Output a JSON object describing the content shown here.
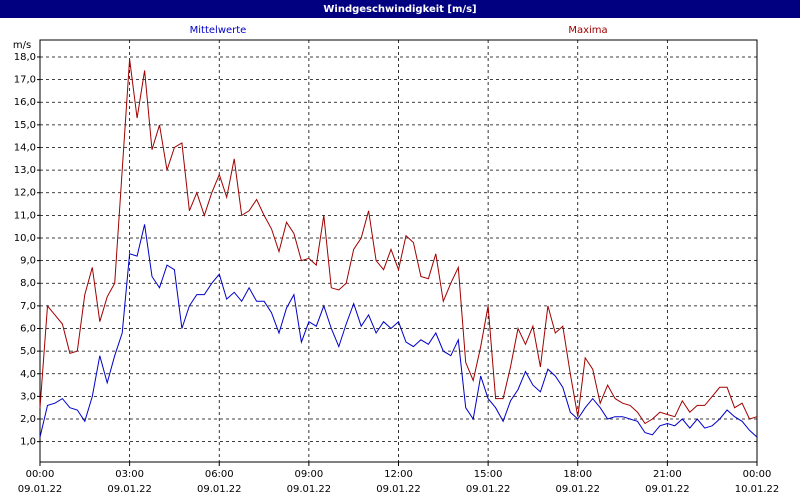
{
  "chart_data": {
    "type": "line",
    "title": "Windgeschwindigkeit [m/s]",
    "y_unit": "m/s",
    "xlim": [
      0,
      24
    ],
    "ylim": [
      0.1,
      18.75
    ],
    "grid": true,
    "xticks": [
      {
        "value": 0,
        "label": [
          "00:00",
          "09.01.22"
        ]
      },
      {
        "value": 3,
        "label": [
          "03:00",
          "09.01.22"
        ]
      },
      {
        "value": 6,
        "label": [
          "06:00",
          "09.01.22"
        ]
      },
      {
        "value": 9,
        "label": [
          "09:00",
          "09.01.22"
        ]
      },
      {
        "value": 12,
        "label": [
          "12:00",
          "09.01.22"
        ]
      },
      {
        "value": 15,
        "label": [
          "15:00",
          "09.01.22"
        ]
      },
      {
        "value": 18,
        "label": [
          "18:00",
          "09.01.22"
        ]
      },
      {
        "value": 21,
        "label": [
          "21:00",
          "09.01.22"
        ]
      },
      {
        "value": 24,
        "label": [
          "00:00",
          "10.01.22"
        ]
      }
    ],
    "yticks": [
      {
        "value": 1,
        "label": "1,0"
      },
      {
        "value": 2,
        "label": "2,0"
      },
      {
        "value": 3,
        "label": "3,0"
      },
      {
        "value": 4,
        "label": "4,0"
      },
      {
        "value": 5,
        "label": "5,0"
      },
      {
        "value": 6,
        "label": "6,0"
      },
      {
        "value": 7,
        "label": "7,0"
      },
      {
        "value": 8,
        "label": "8,0"
      },
      {
        "value": 9,
        "label": "9,0"
      },
      {
        "value": 10,
        "label": "10,0"
      },
      {
        "value": 11,
        "label": "11,0"
      },
      {
        "value": 12,
        "label": "12,0"
      },
      {
        "value": 13,
        "label": "13,0"
      },
      {
        "value": 14,
        "label": "14,0"
      },
      {
        "value": 15,
        "label": "15,0"
      },
      {
        "value": 16,
        "label": "16,0"
      },
      {
        "value": 17,
        "label": "17,0"
      },
      {
        "value": 18,
        "label": "18,0"
      }
    ],
    "x": [
      0,
      0.25,
      0.5,
      0.75,
      1,
      1.25,
      1.5,
      1.75,
      2,
      2.25,
      2.5,
      2.75,
      3,
      3.25,
      3.5,
      3.75,
      4,
      4.25,
      4.5,
      4.75,
      5,
      5.25,
      5.5,
      5.75,
      6,
      6.25,
      6.5,
      6.75,
      7,
      7.25,
      7.5,
      7.75,
      8,
      8.25,
      8.5,
      8.75,
      9,
      9.25,
      9.5,
      9.75,
      10,
      10.25,
      10.5,
      10.75,
      11,
      11.25,
      11.5,
      11.75,
      12,
      12.25,
      12.5,
      12.75,
      13,
      13.25,
      13.5,
      13.75,
      14,
      14.25,
      14.5,
      14.75,
      15,
      15.25,
      15.5,
      15.75,
      16,
      16.25,
      16.5,
      16.75,
      17,
      17.25,
      17.5,
      17.75,
      18,
      18.25,
      18.5,
      18.75,
      19,
      19.25,
      19.5,
      19.75,
      20,
      20.25,
      20.5,
      20.75,
      21,
      21.25,
      21.5,
      21.75,
      22,
      22.25,
      22.5,
      22.75,
      23,
      23.25,
      23.5,
      23.75,
      24
    ],
    "series": [
      {
        "name": "Mittelwerte",
        "color": "#0000c8",
        "values": [
          1.2,
          2.6,
          2.7,
          2.9,
          2.5,
          2.4,
          1.9,
          3.0,
          4.8,
          3.6,
          4.8,
          5.8,
          9.3,
          9.2,
          10.6,
          8.3,
          7.8,
          8.8,
          8.6,
          6.0,
          7.0,
          7.5,
          7.5,
          8.0,
          8.4,
          7.3,
          7.6,
          7.2,
          7.8,
          7.2,
          7.2,
          6.7,
          5.8,
          6.9,
          7.5,
          5.4,
          6.3,
          6.1,
          7.0,
          6.0,
          5.2,
          6.2,
          7.1,
          6.1,
          6.6,
          5.8,
          6.3,
          6.0,
          6.3,
          5.4,
          5.2,
          5.5,
          5.3,
          5.8,
          5.0,
          4.8,
          5.5,
          2.5,
          2.0,
          3.9,
          2.9,
          2.5,
          1.9,
          2.8,
          3.3,
          4.1,
          3.5,
          3.2,
          4.2,
          3.9,
          3.4,
          2.3,
          2.0,
          2.5,
          2.9,
          2.5,
          2.0,
          2.1,
          2.1,
          2.0,
          1.9,
          1.4,
          1.3,
          1.7,
          1.8,
          1.7,
          2.0,
          1.6,
          2.0,
          1.6,
          1.7,
          2.0,
          2.4,
          2.1,
          1.9,
          1.5,
          1.2
        ]
      },
      {
        "name": "Maxima",
        "color": "#a00000",
        "values": [
          2.5,
          7.0,
          6.6,
          6.2,
          4.9,
          5.0,
          7.5,
          8.7,
          6.3,
          7.4,
          8.0,
          13.0,
          17.9,
          15.3,
          17.4,
          13.9,
          15.0,
          13.0,
          14.0,
          14.2,
          11.2,
          12.0,
          11.0,
          12.0,
          12.8,
          11.8,
          13.5,
          11.0,
          11.2,
          11.7,
          11.0,
          10.4,
          9.4,
          10.7,
          10.2,
          9.0,
          9.1,
          8.8,
          11.0,
          7.8,
          7.7,
          8.0,
          9.5,
          10.0,
          11.2,
          9.0,
          8.6,
          9.5,
          8.6,
          10.1,
          9.8,
          8.3,
          8.2,
          9.3,
          7.2,
          8.0,
          8.7,
          4.5,
          3.7,
          5.2,
          7.0,
          2.9,
          2.9,
          4.3,
          6.0,
          5.3,
          6.1,
          4.3,
          7.0,
          5.8,
          6.1,
          4.0,
          2.1,
          4.7,
          4.2,
          2.7,
          3.5,
          2.9,
          2.7,
          2.6,
          2.3,
          1.8,
          2.0,
          2.3,
          2.2,
          2.1,
          2.8,
          2.3,
          2.6,
          2.6,
          3.0,
          3.4,
          3.4,
          2.5,
          2.7,
          2.0,
          2.1
        ]
      }
    ]
  }
}
